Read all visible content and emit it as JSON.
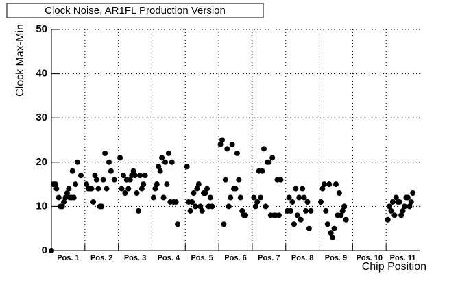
{
  "chart_data": {
    "type": "scatter",
    "title": "Clock Noise, AR1FL Production Version",
    "x_label": "Chip Position",
    "y_label": "Clock Max-Min",
    "xlim": [
      0,
      11
    ],
    "ylim": [
      0,
      50
    ],
    "yticks": [
      0,
      10,
      20,
      30,
      40,
      50
    ],
    "xticks": [
      {
        "value": 0.5,
        "label": "Pos. 1"
      },
      {
        "value": 1.5,
        "label": "Pos. 2"
      },
      {
        "value": 2.5,
        "label": "Pos. 3"
      },
      {
        "value": 3.5,
        "label": "Pos. 4"
      },
      {
        "value": 4.5,
        "label": "Pos. 5"
      },
      {
        "value": 5.5,
        "label": "Pos. 6"
      },
      {
        "value": 6.5,
        "label": "Pos. 7"
      },
      {
        "value": 7.5,
        "label": "Pos. 8"
      },
      {
        "value": 8.5,
        "label": "Pos. 9"
      },
      {
        "value": 9.5,
        "label": "Pos. 10"
      },
      {
        "value": 10.5,
        "label": "Pos. 11"
      }
    ],
    "xgrid": [
      1,
      2,
      3,
      4,
      5,
      6,
      7,
      8,
      9,
      10
    ],
    "grid": true,
    "color": "#000000",
    "x": [
      0,
      0.06,
      0.12,
      0.15,
      0.22,
      0.27,
      0.32,
      0.37,
      0.42,
      0.47,
      0.52,
      0.55,
      0.6,
      0.63,
      0.67,
      0.72,
      0.78,
      0.88,
      1.05,
      1.1,
      1.15,
      1.2,
      1.25,
      1.3,
      1.35,
      1.4,
      1.45,
      1.5,
      1.55,
      1.6,
      1.65,
      1.72,
      1.78,
      1.88,
      2.05,
      2.1,
      2.15,
      2.2,
      2.25,
      2.3,
      2.35,
      2.4,
      2.45,
      2.5,
      2.55,
      2.6,
      2.65,
      2.7,
      2.75,
      2.8,
      3.05,
      3.1,
      3.15,
      3.2,
      3.25,
      3.3,
      3.35,
      3.4,
      3.45,
      3.5,
      3.55,
      3.6,
      3.65,
      3.72,
      3.77,
      4.05,
      4.1,
      4.15,
      4.2,
      4.25,
      4.3,
      4.35,
      4.4,
      4.45,
      4.5,
      4.55,
      4.6,
      4.65,
      4.7,
      4.75,
      4.8,
      5.05,
      5.1,
      5.15,
      5.2,
      5.25,
      5.3,
      5.35,
      5.4,
      5.45,
      5.5,
      5.55,
      5.6,
      5.65,
      5.7,
      5.75,
      5.8,
      6.05,
      6.1,
      6.15,
      6.2,
      6.25,
      6.3,
      6.35,
      6.4,
      6.45,
      6.5,
      6.55,
      6.6,
      6.65,
      6.7,
      6.75,
      6.8,
      6.85,
      7.05,
      7.1,
      7.15,
      7.2,
      7.25,
      7.3,
      7.35,
      7.4,
      7.45,
      7.5,
      7.55,
      7.6,
      7.65,
      7.7,
      7.75,
      8.05,
      8.1,
      8.15,
      8.2,
      8.25,
      8.3,
      8.35,
      8.4,
      8.45,
      8.5,
      8.55,
      8.6,
      8.65,
      8.7,
      8.75,
      8.8,
      10.05,
      10.1,
      10.15,
      10.2,
      10.25,
      10.3,
      10.35,
      10.4,
      10.45,
      10.5,
      10.55,
      10.6,
      10.65,
      10.7,
      10.75,
      10.8
    ],
    "values": [
      0,
      15,
      15,
      14,
      12,
      10,
      10,
      11,
      12,
      13,
      14,
      12,
      12,
      18,
      12,
      15,
      20,
      17,
      15,
      14,
      14,
      14,
      11,
      17,
      16,
      14,
      10,
      10,
      16,
      22,
      14,
      20,
      18,
      16,
      21,
      14,
      17,
      13,
      16,
      14,
      16,
      17,
      18,
      17,
      13,
      9,
      17,
      14,
      15,
      17,
      12,
      14,
      15,
      19,
      18,
      21,
      12,
      20,
      15,
      22,
      11,
      20,
      11,
      11,
      6,
      19,
      11,
      9,
      11,
      13,
      10,
      14,
      15,
      10,
      9,
      13,
      13,
      14,
      10,
      12,
      10,
      24,
      25,
      6,
      16,
      23,
      10,
      12,
      24,
      14,
      14,
      22,
      16,
      12,
      9,
      8,
      8,
      12,
      10,
      11,
      18,
      12,
      18,
      23,
      10,
      20,
      20,
      8,
      21,
      8,
      8,
      16,
      8,
      16,
      9,
      12,
      9,
      11,
      6,
      14,
      8,
      12,
      7,
      14,
      12,
      9,
      11,
      5,
      9,
      11,
      14,
      15,
      9,
      6,
      15,
      4,
      3,
      5,
      15,
      8,
      13,
      8,
      9,
      10,
      7,
      7,
      10,
      9,
      11,
      8,
      12,
      11,
      11,
      8,
      9,
      10,
      12,
      12,
      10,
      11,
      13
    ]
  }
}
